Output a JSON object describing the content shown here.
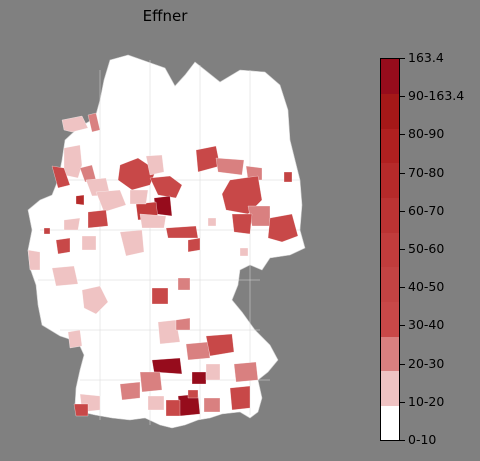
{
  "title": "Effner",
  "legend": {
    "labels": [
      "163.4",
      "90-163.4",
      "80-90",
      "70-80",
      "60-70",
      "50-60",
      "40-50",
      "30-40",
      "20-30",
      "10-20",
      "0-10"
    ],
    "colors": [
      "#ffffff",
      "#efc3c3",
      "#d98080",
      "#c84848",
      "#c44343",
      "#c13c3c",
      "#bb3333",
      "#b62a2a",
      "#b02020",
      "#a51818",
      "#960c1c"
    ]
  },
  "colors": {
    "background": "#808080",
    "land": "#ffffff",
    "borders": "#c8c8c8"
  }
}
